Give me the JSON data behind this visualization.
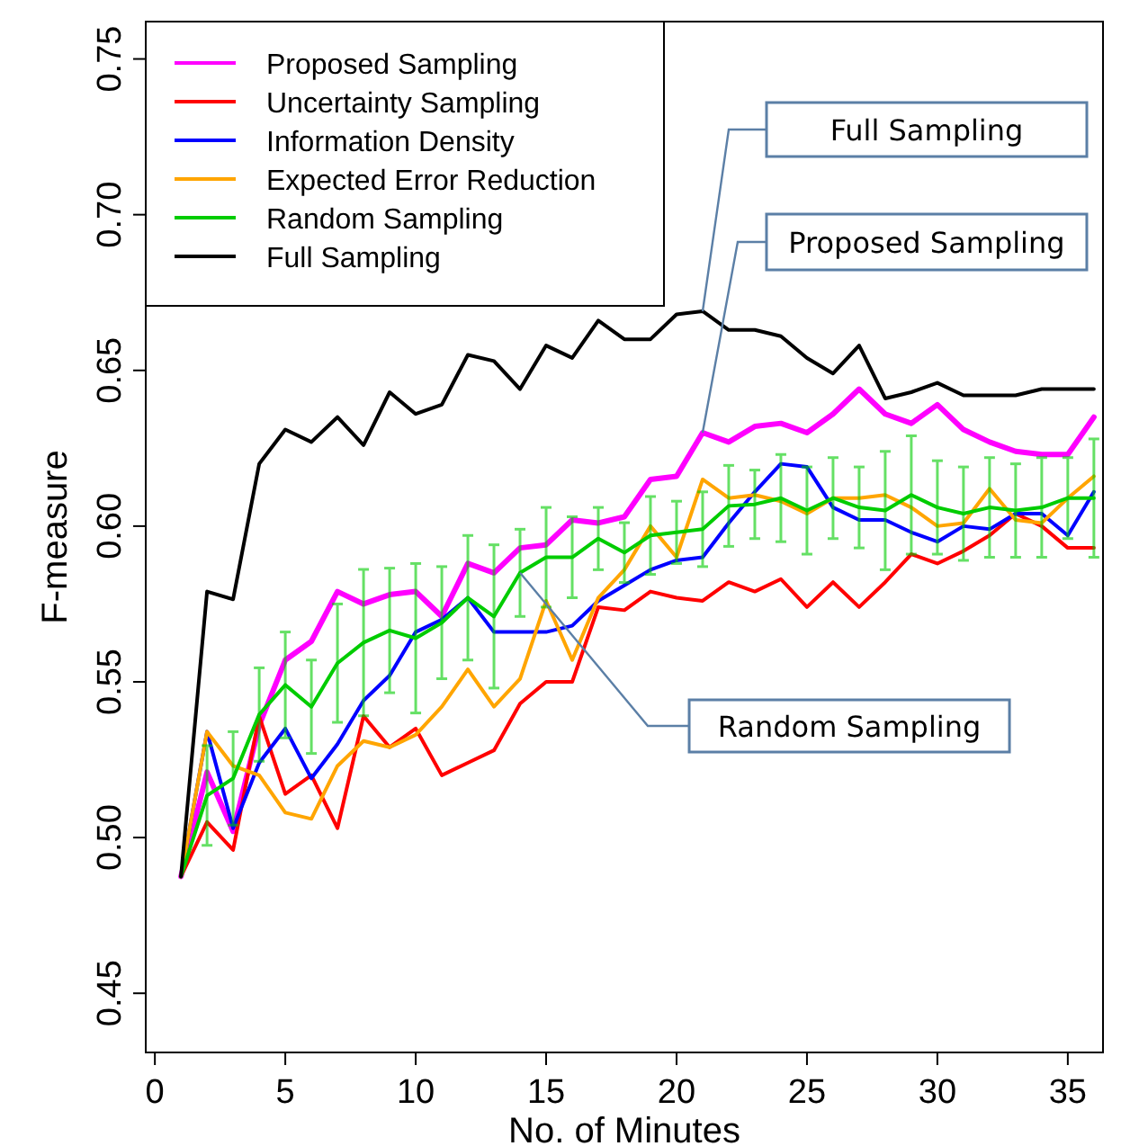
{
  "chart_data": {
    "type": "line",
    "xlabel": "No. of Minutes",
    "ylabel": "F-measure",
    "x": [
      1,
      2,
      3,
      4,
      5,
      6,
      7,
      8,
      9,
      10,
      11,
      12,
      13,
      14,
      15,
      16,
      17,
      18,
      19,
      20,
      21,
      22,
      23,
      24,
      25,
      26,
      27,
      28,
      29,
      30,
      31,
      32,
      33,
      34,
      35,
      36
    ],
    "xlim": [
      -0.35,
      36.35
    ],
    "ylim": [
      0.431,
      0.762
    ],
    "xticks": [
      0,
      5,
      10,
      15,
      20,
      25,
      30,
      35
    ],
    "yticks": [
      0.45,
      {
        "value": 0.5,
        "label": "0.50"
      },
      0.55,
      {
        "value": 0.6,
        "label": "0.60"
      },
      0.65,
      {
        "value": 0.7,
        "label": "0.70"
      },
      0.75
    ],
    "legend": "top left",
    "marker": "none",
    "line_style": "solid",
    "series": [
      {
        "name": "Proposed Sampling",
        "color": "#ff00ff",
        "values": [
          0.4875,
          0.521,
          0.502,
          0.536,
          0.557,
          0.563,
          0.579,
          0.575,
          0.578,
          0.579,
          0.571,
          0.588,
          0.585,
          0.593,
          0.594,
          0.602,
          0.601,
          0.603,
          0.615,
          0.616,
          0.63,
          0.627,
          0.632,
          0.633,
          0.63,
          0.636,
          0.644,
          0.636,
          0.633,
          0.639,
          0.631,
          0.627,
          0.624,
          0.623,
          0.623,
          0.635
        ]
      },
      {
        "name": "Uncertainty Sampling",
        "color": "#ff0000",
        "values": [
          0.4875,
          0.505,
          0.496,
          0.539,
          0.514,
          0.52,
          0.503,
          0.539,
          0.529,
          0.535,
          0.52,
          0.524,
          0.528,
          0.543,
          0.55,
          0.55,
          0.574,
          0.573,
          0.579,
          0.577,
          0.576,
          0.582,
          0.579,
          0.583,
          0.574,
          0.582,
          0.574,
          0.582,
          0.591,
          0.588,
          0.592,
          0.597,
          0.604,
          0.6,
          0.593,
          0.593
        ]
      },
      {
        "name": "Information Density",
        "color": "#0000ff",
        "values": [
          0.4875,
          0.534,
          0.503,
          0.524,
          0.535,
          0.519,
          0.53,
          0.544,
          0.552,
          0.566,
          0.57,
          0.577,
          0.566,
          0.566,
          0.566,
          0.568,
          0.576,
          0.581,
          0.586,
          0.589,
          0.59,
          0.601,
          0.611,
          0.62,
          0.619,
          0.606,
          0.602,
          0.602,
          0.598,
          0.595,
          0.6,
          0.599,
          0.604,
          0.604,
          0.597,
          0.611
        ]
      },
      {
        "name": "Expected Error Reduction",
        "color": "#ffa500",
        "values": [
          0.4875,
          0.534,
          0.523,
          0.52,
          0.508,
          0.506,
          0.523,
          0.531,
          0.529,
          0.533,
          0.542,
          0.554,
          0.542,
          0.551,
          0.576,
          0.557,
          0.577,
          0.586,
          0.6,
          0.59,
          0.615,
          0.609,
          0.61,
          0.608,
          0.604,
          0.609,
          0.609,
          0.61,
          0.606,
          0.6,
          0.601,
          0.612,
          0.602,
          0.601,
          0.609,
          0.616
        ]
      },
      {
        "name": "Random Sampling",
        "color": "#00cc00",
        "values": [
          0.4875,
          0.5135,
          0.519,
          0.5395,
          0.549,
          0.542,
          0.556,
          0.5626,
          0.5665,
          0.564,
          0.569,
          0.577,
          0.571,
          0.585,
          0.59,
          0.59,
          0.596,
          0.5915,
          0.597,
          0.598,
          0.599,
          0.6065,
          0.607,
          0.609,
          0.605,
          0.609,
          0.606,
          0.605,
          0.61,
          0.606,
          0.604,
          0.606,
          0.605,
          0.606,
          0.609,
          0.609
        ],
        "errors": [
          null,
          0.016,
          0.015,
          0.015,
          0.017,
          0.015,
          0.019,
          0.0235,
          0.02,
          0.024,
          0.018,
          0.02,
          0.023,
          0.014,
          0.016,
          0.013,
          0.01,
          0.0096,
          0.0125,
          0.01,
          0.012,
          0.013,
          0.011,
          0.014,
          0.014,
          0.013,
          0.013,
          0.019,
          0.019,
          0.015,
          0.015,
          0.016,
          0.015,
          0.016,
          0.013,
          0.019
        ]
      },
      {
        "name": "Full Sampling",
        "color": "#000000",
        "values": [
          0.4875,
          0.579,
          0.5765,
          0.62,
          0.631,
          0.627,
          0.635,
          0.626,
          0.643,
          0.636,
          0.639,
          0.655,
          0.653,
          0.644,
          0.658,
          0.654,
          0.666,
          0.66,
          0.66,
          0.668,
          0.669,
          0.663,
          0.663,
          0.661,
          0.654,
          0.649,
          0.658,
          0.641,
          0.643,
          0.646,
          0.642,
          0.642,
          0.642,
          0.644,
          0.644,
          0.644
        ]
      }
    ],
    "annotations": [
      "Full Sampling",
      {
        "text": "Proposed Sampling",
        "x": 21,
        "y": 0.63
      },
      {
        "text": "Random Sampling",
        "x": 14,
        "y": 0.585
      }
    ]
  }
}
